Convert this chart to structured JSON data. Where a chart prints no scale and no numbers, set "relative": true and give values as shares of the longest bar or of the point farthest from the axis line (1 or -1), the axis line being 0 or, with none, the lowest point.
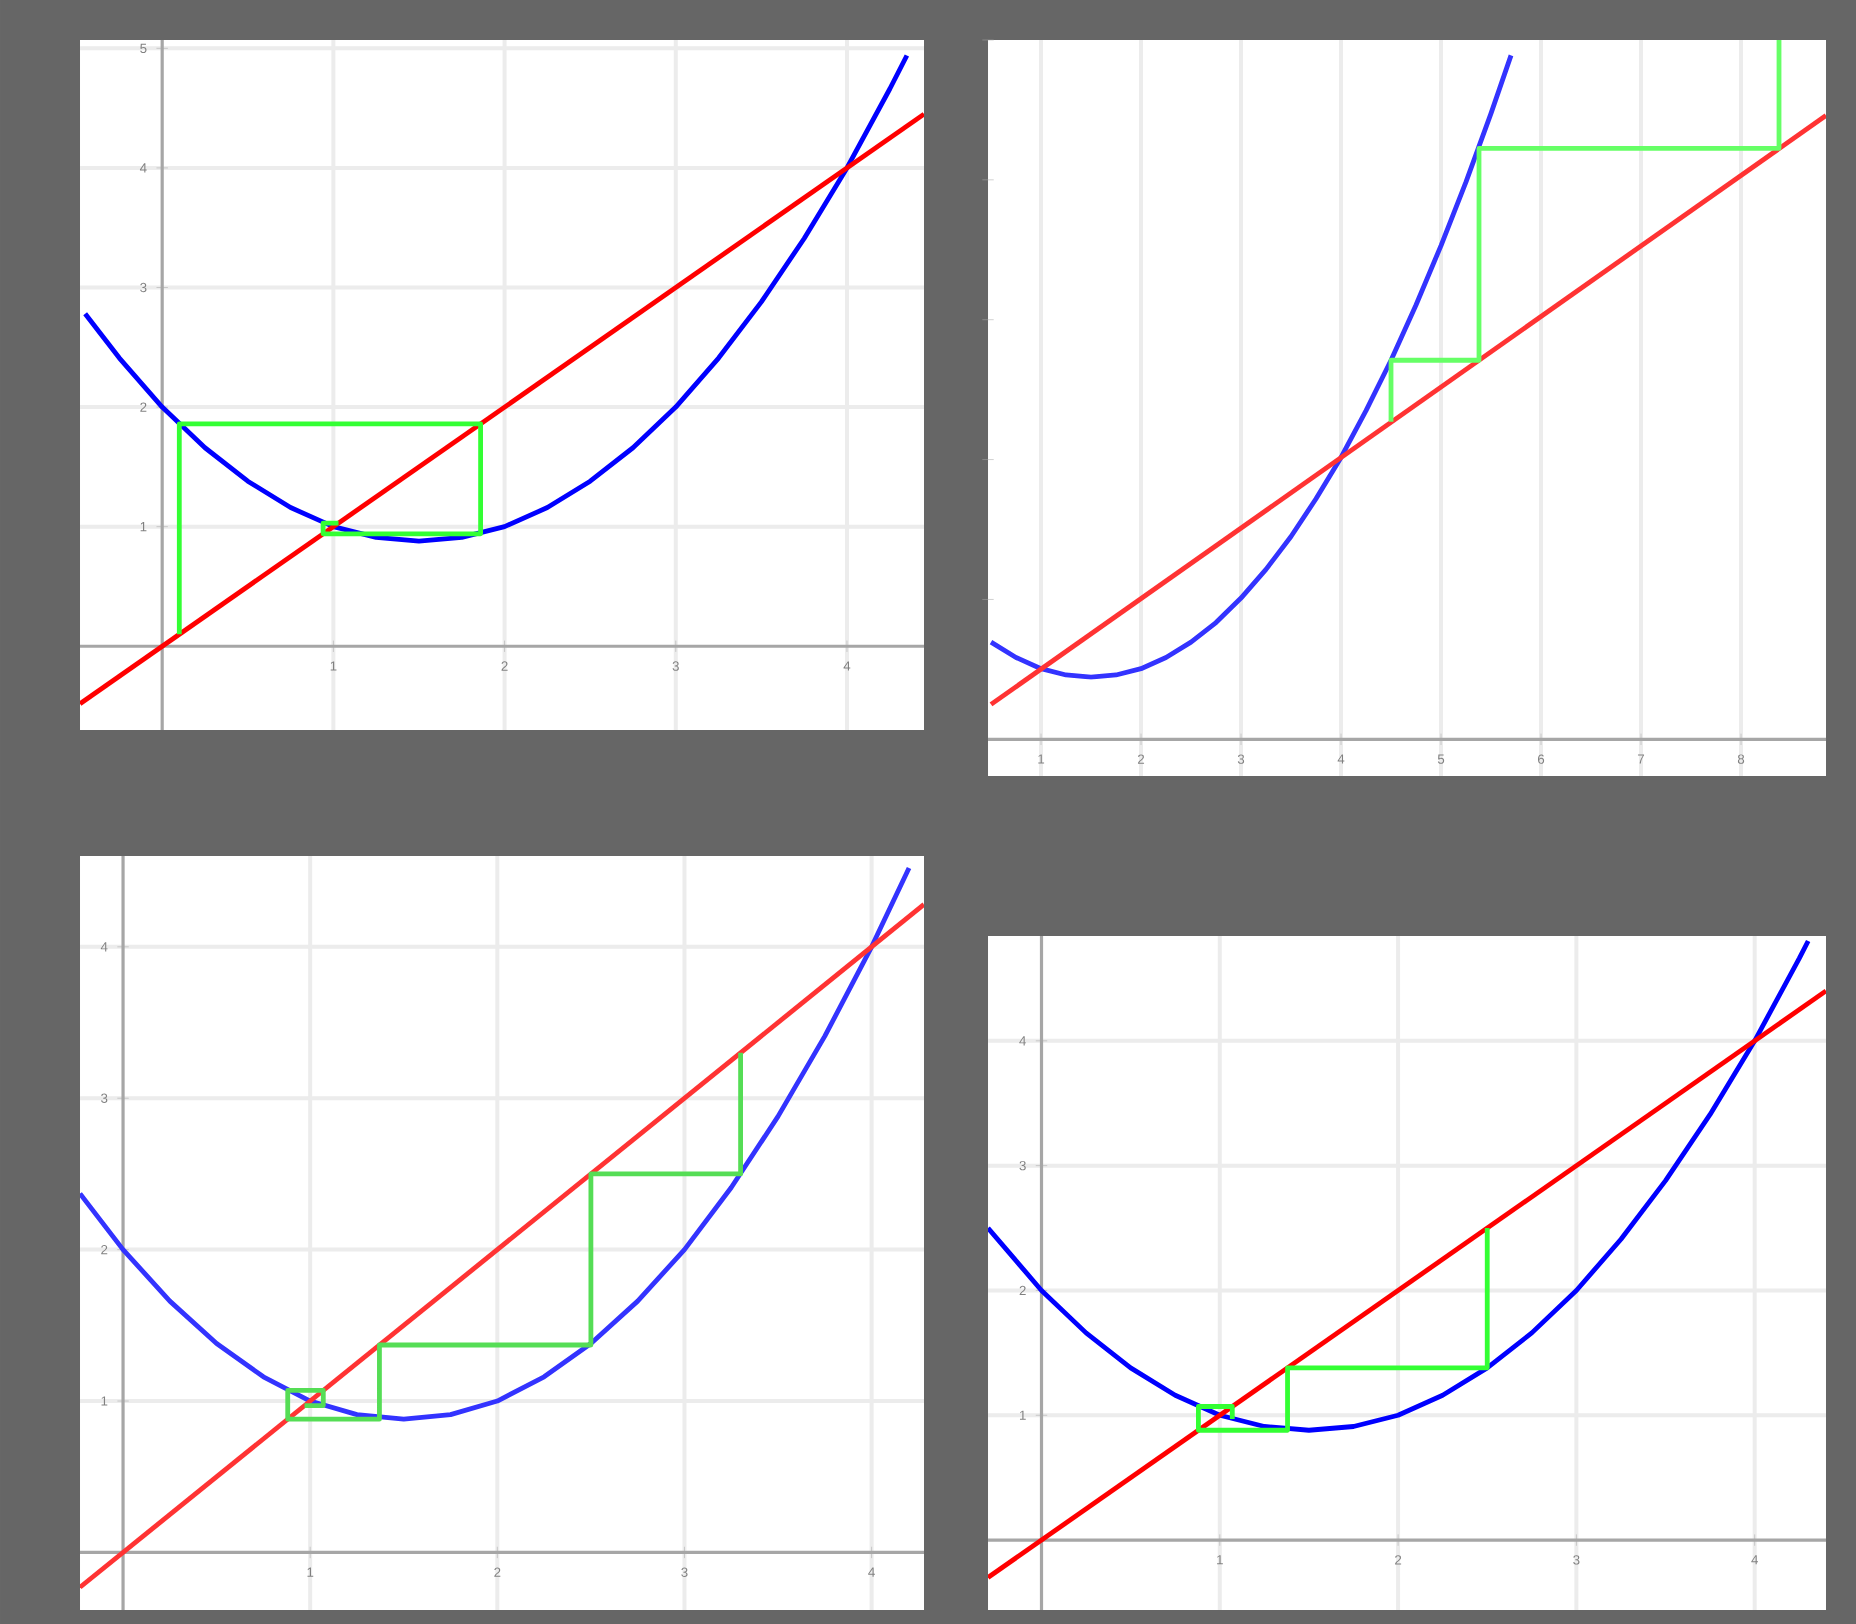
{
  "chart_data": [
    {
      "type": "line",
      "xlim": [
        -0.48,
        4.45
      ],
      "ylim": [
        -0.7,
        5.07
      ],
      "xticks": [
        1,
        2,
        3,
        4
      ],
      "yticks": [
        1,
        2,
        3,
        4,
        5
      ],
      "grid": true,
      "series": [
        {
          "color": "#0000ff",
          "x": [
            -0.45,
            -0.25,
            0,
            0.25,
            0.5,
            0.75,
            1,
            1.25,
            1.5,
            1.75,
            2,
            2.25,
            2.5,
            2.75,
            3,
            3.25,
            3.5,
            3.75,
            4,
            4.25,
            4.35
          ],
          "values": [
            2.78,
            2.41,
            2,
            1.66,
            1.38,
            1.16,
            1,
            0.91,
            0.88,
            0.91,
            1,
            1.16,
            1.38,
            1.66,
            2,
            2.41,
            2.88,
            3.41,
            4,
            4.66,
            4.94
          ]
        },
        {
          "color": "#ff0000",
          "x": [
            -0.48,
            4.45
          ],
          "values": [
            -0.48,
            4.45
          ]
        },
        {
          "color": "#33ff33",
          "x": [
            0.1,
            0.1,
            1.86,
            1.86,
            0.94,
            0.94,
            1.03
          ],
          "values": [
            0.1,
            1.86,
            1.86,
            0.94,
            0.94,
            1.03,
            1.03
          ]
        }
      ]
    },
    {
      "type": "line",
      "relative": true,
      "xlim": [
        0.47,
        8.85
      ],
      "xticks": [
        1,
        2,
        3,
        4,
        5,
        6,
        7,
        8
      ],
      "grid": "x",
      "series": [
        {
          "color": "#3333ff",
          "x": [
            0.5,
            0.75,
            1,
            1.25,
            1.5,
            1.75,
            2,
            2.25,
            2.5,
            2.75,
            3,
            3.25,
            3.5,
            3.75,
            4,
            4.25,
            4.5,
            4.75,
            5,
            5.25,
            5.5,
            5.7
          ],
          "values": [
            0.139,
            0.117,
            0.101,
            0.092,
            0.089,
            0.092,
            0.101,
            0.117,
            0.139,
            0.167,
            0.202,
            0.243,
            0.29,
            0.344,
            0.403,
            0.47,
            0.542,
            0.621,
            0.706,
            0.797,
            0.895,
            0.978
          ]
        },
        {
          "color": "#ff3333",
          "x": [
            0.5,
            8.85
          ],
          "values": [
            0.05,
            0.892
          ]
        },
        {
          "color": "#66ff66",
          "x": [
            4.5,
            4.5,
            5.38,
            5.38,
            8.38,
            8.38
          ],
          "values": [
            0.454,
            0.542,
            0.542,
            0.845,
            0.845,
            1
          ]
        }
      ]
    },
    {
      "type": "line",
      "xlim": [
        -0.23,
        4.28
      ],
      "ylim": [
        -0.38,
        4.6
      ],
      "xticks": [
        1,
        2,
        3,
        4
      ],
      "yticks": [
        1,
        2,
        3,
        4
      ],
      "grid": true,
      "series": [
        {
          "color": "#3333ff",
          "x": [
            -0.23,
            0,
            0.25,
            0.5,
            0.75,
            1,
            1.25,
            1.5,
            1.75,
            2,
            2.25,
            2.5,
            2.75,
            3,
            3.25,
            3.5,
            3.75,
            4,
            4.2
          ],
          "values": [
            2.37,
            2,
            1.66,
            1.38,
            1.16,
            1,
            0.91,
            0.88,
            0.91,
            1,
            1.16,
            1.38,
            1.66,
            2,
            2.41,
            2.88,
            3.41,
            4,
            4.52
          ]
        },
        {
          "color": "#ff3333",
          "x": [
            -0.23,
            4.28
          ],
          "values": [
            -0.23,
            4.28
          ]
        },
        {
          "color": "#55dd55",
          "x": [
            3.3,
            3.3,
            2.5,
            2.5,
            1.37,
            1.37,
            0.88,
            0.88,
            1.07,
            1.07,
            0.97
          ],
          "values": [
            3.3,
            2.5,
            2.5,
            1.37,
            1.37,
            0.88,
            0.88,
            1.07,
            1.07,
            0.97,
            0.97
          ]
        }
      ]
    },
    {
      "type": "line",
      "xlim": [
        -0.3,
        4.4
      ],
      "ylim": [
        -0.56,
        4.84
      ],
      "xticks": [
        1,
        2,
        3,
        4
      ],
      "yticks": [
        1,
        2,
        3,
        4
      ],
      "grid": true,
      "series": [
        {
          "color": "#0000ff",
          "x": [
            -0.3,
            0,
            0.25,
            0.5,
            0.75,
            1,
            1.25,
            1.5,
            1.75,
            2,
            2.25,
            2.5,
            2.75,
            3,
            3.25,
            3.5,
            3.75,
            4,
            4.25,
            4.3
          ],
          "values": [
            2.5,
            2,
            1.66,
            1.38,
            1.16,
            1,
            0.91,
            0.88,
            0.91,
            1,
            1.16,
            1.38,
            1.66,
            2,
            2.41,
            2.88,
            3.41,
            4,
            4.66,
            4.8
          ]
        },
        {
          "color": "#ff0000",
          "x": [
            -0.3,
            4.4
          ],
          "values": [
            -0.3,
            4.4
          ]
        },
        {
          "color": "#33ff33",
          "x": [
            2.5,
            2.5,
            1.38,
            1.38,
            0.88,
            0.88,
            1.07,
            1.07
          ],
          "values": [
            2.5,
            1.38,
            1.38,
            0.88,
            0.88,
            1.07,
            1.07,
            0.97
          ]
        }
      ]
    }
  ]
}
